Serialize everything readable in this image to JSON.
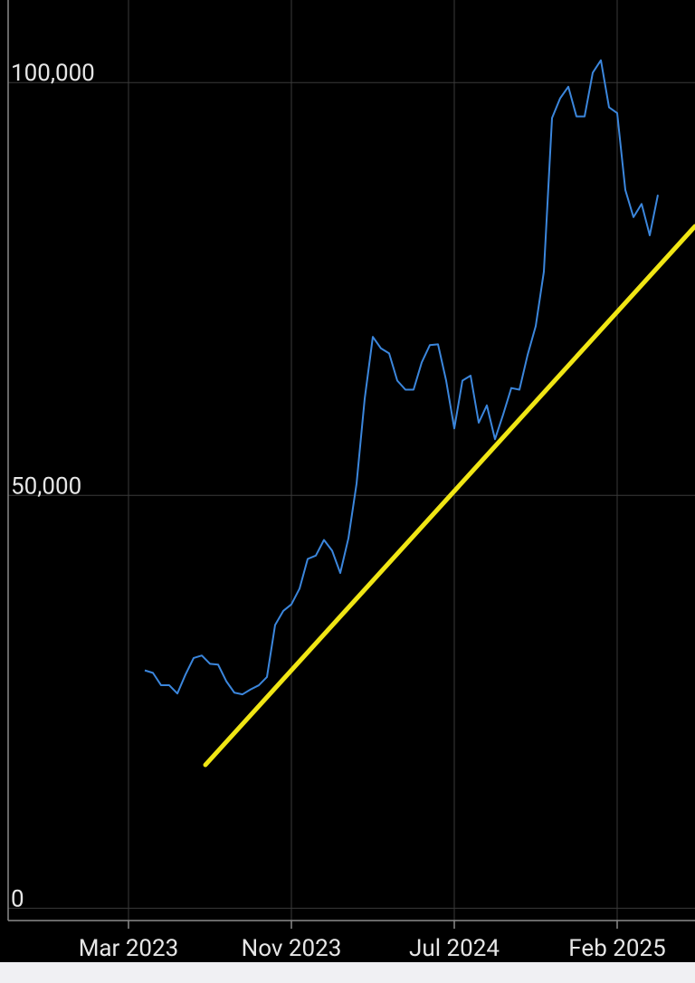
{
  "chart_data": {
    "type": "line",
    "categories": [
      "Mar 2023",
      null,
      null,
      null,
      null,
      null,
      null,
      null,
      null,
      null,
      null,
      null,
      null,
      null,
      null,
      null,
      null,
      null,
      null,
      null,
      "Nov 2023",
      null,
      null,
      null,
      null,
      null,
      null,
      null,
      null,
      null,
      null,
      null,
      null,
      null,
      null,
      null,
      null,
      null,
      null,
      null,
      "Jul 2024",
      null,
      null,
      null,
      null,
      null,
      null,
      null,
      null,
      null,
      null,
      null,
      null,
      null,
      null,
      null,
      null,
      null,
      null,
      null,
      "Feb 2025",
      null,
      null,
      null,
      null,
      null
    ],
    "series": [
      {
        "color": "#3b86dc",
        "values": [
          null,
          null,
          28800,
          28500,
          27000,
          27000,
          26000,
          28300,
          30300,
          30600,
          29600,
          29500,
          27500,
          26100,
          25900,
          26500,
          27000,
          28000,
          34300,
          36000,
          36800,
          38700,
          42300,
          42700,
          44600,
          43300,
          40600,
          44800,
          51400,
          61700,
          69200,
          67800,
          67200,
          63900,
          62800,
          62800,
          66100,
          68200,
          68300,
          63900,
          58100,
          63900,
          64500,
          58800,
          60900,
          56800,
          59800,
          63000,
          62800,
          67000,
          70500,
          77100,
          95700,
          98100,
          99500,
          95900,
          95900,
          101200,
          102700,
          97000,
          96300,
          87000,
          83700,
          85300,
          81500,
          86400
        ]
      }
    ],
    "ylim": [
      -1500,
      110000
    ],
    "yticks": [
      0,
      {
        "value": 50000,
        "label": "50,000"
      },
      {
        "value": 100000,
        "label": "100,000"
      }
    ],
    "grid": true
  }
}
